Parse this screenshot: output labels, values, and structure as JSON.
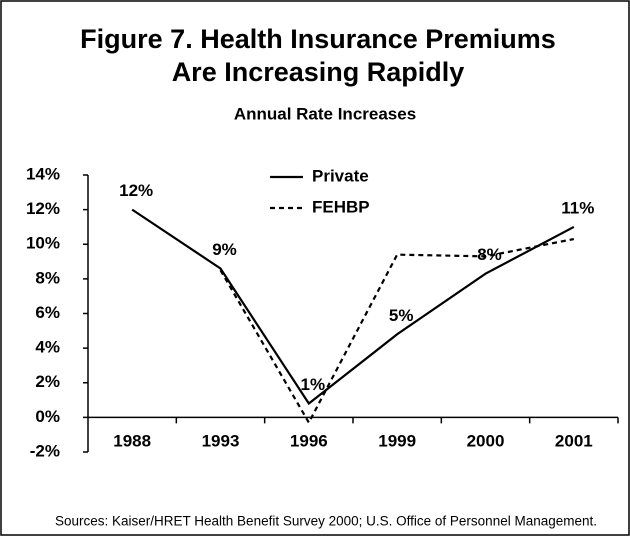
{
  "chart_data": {
    "type": "line",
    "title": "Figure 7. Health Insurance Premiums",
    "title_line2": "Are Increasing Rapidly",
    "subtitle": "Annual Rate Increases",
    "source": "Sources: Kaiser/HRET Health Benefit Survey 2000; U.S. Office of Personnel Management.",
    "categories": [
      "1988",
      "1993",
      "1996",
      "1999",
      "2000",
      "2001"
    ],
    "series": [
      {
        "name": "Private",
        "color": "#000000",
        "dash": false,
        "values": [
          12,
          8.6,
          0.8,
          4.8,
          8.3,
          11
        ],
        "value_labels": [
          "12%",
          "9%",
          "1%",
          "5%",
          "8%",
          "11%"
        ]
      },
      {
        "name": "FEHBP",
        "color": "#000000",
        "dash": true,
        "values": [
          null,
          8.5,
          -0.3,
          9.4,
          9.3,
          10.3
        ]
      }
    ],
    "ylim": [
      -2,
      14
    ],
    "yticks": [
      {
        "value": -2,
        "label": "-2%"
      },
      {
        "value": 0,
        "label": "0%"
      },
      {
        "value": 2,
        "label": "2%"
      },
      {
        "value": 4,
        "label": "4%"
      },
      {
        "value": 6,
        "label": "6%"
      },
      {
        "value": 8,
        "label": "8%"
      },
      {
        "value": 10,
        "label": "10%"
      },
      {
        "value": 12,
        "label": "12%"
      },
      {
        "value": 14,
        "label": "14%"
      }
    ],
    "legend": "top"
  }
}
